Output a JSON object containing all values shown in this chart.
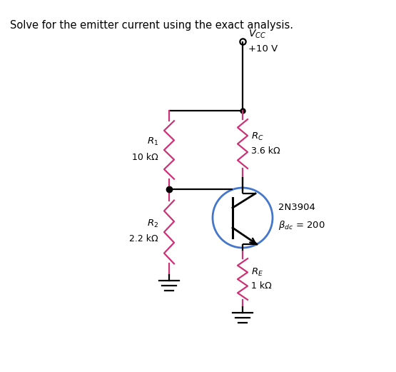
{
  "title": "Solve for the emitter current using the exact analysis.",
  "vcc_line1": "V",
  "vcc_sub": "CC",
  "vcc_value": "+10 V",
  "r1_label": "R",
  "r1_sub": "1",
  "r1_value": "10 kΩ",
  "r2_label": "R",
  "r2_sub": "2",
  "r2_value": "2.2 kΩ",
  "rc_label": "R",
  "rc_sub": "C",
  "rc_value": "3.6 kΩ",
  "re_label": "R",
  "re_sub": "E",
  "re_value": "1 kΩ",
  "transistor_name": "2N3904",
  "beta_label": "β",
  "beta_sub": "dc",
  "beta_value": " = 200",
  "wire_color": "#000000",
  "resistor_color": "#cc3377",
  "transistor_circle_color": "#4477cc",
  "bg_color": "#ffffff",
  "fig_width": 5.55,
  "fig_height": 5.21
}
